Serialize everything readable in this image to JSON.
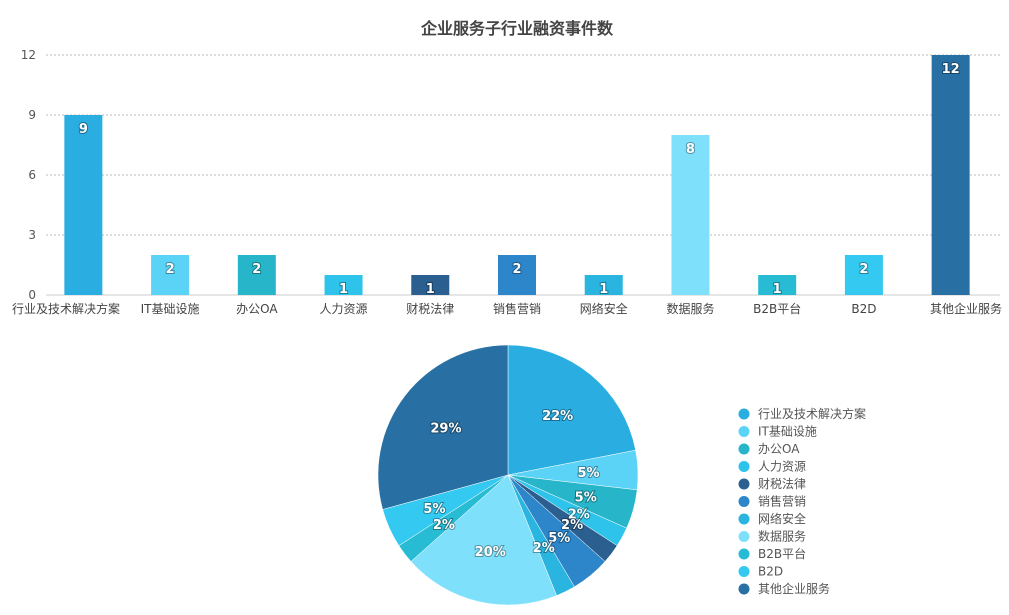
{
  "chart_data": [
    {
      "type": "bar",
      "title": "企业服务子行业融资事件数",
      "categories": [
        "行业及技术解决方案",
        "IT基础设施",
        "办公OA",
        "人力资源",
        "财税法律",
        "销售营销",
        "网络安全",
        "数据服务",
        "B2B平台",
        "B2D",
        "其他企业服务"
      ],
      "values": [
        9,
        2,
        2,
        1,
        1,
        2,
        1,
        8,
        1,
        2,
        12
      ],
      "colors": [
        "#2aade0",
        "#5bd3f7",
        "#26b5c9",
        "#2dc3ea",
        "#2a5f8f",
        "#2d86c9",
        "#29b5e0",
        "#7fe0fb",
        "#28bcd4",
        "#34c9f0",
        "#286fa3"
      ],
      "ylim": [
        0,
        12
      ],
      "yticks": [
        "0",
        "3",
        "6",
        "9",
        "12"
      ],
      "grid": true,
      "data_labels": true
    },
    {
      "type": "pie",
      "labels": [
        "行业及技术解决方案",
        "IT基础设施",
        "办公OA",
        "人力资源",
        "财税法律",
        "销售营销",
        "网络安全",
        "数据服务",
        "B2B平台",
        "B2D",
        "其他企业服务"
      ],
      "values": [
        9,
        2,
        2,
        1,
        1,
        2,
        1,
        8,
        1,
        2,
        12
      ],
      "percent_labels": [
        "22%",
        "5%",
        "5%",
        "2%",
        "2%",
        "5%",
        "2%",
        "20%",
        "2%",
        "5%",
        "29%"
      ],
      "colors": [
        "#2aade0",
        "#5bd3f7",
        "#26b5c9",
        "#2dc3ea",
        "#2a5f8f",
        "#2d86c9",
        "#29b5e0",
        "#7fe0fb",
        "#28bcd4",
        "#34c9f0",
        "#286fa3"
      ],
      "legend_position": "right"
    }
  ]
}
